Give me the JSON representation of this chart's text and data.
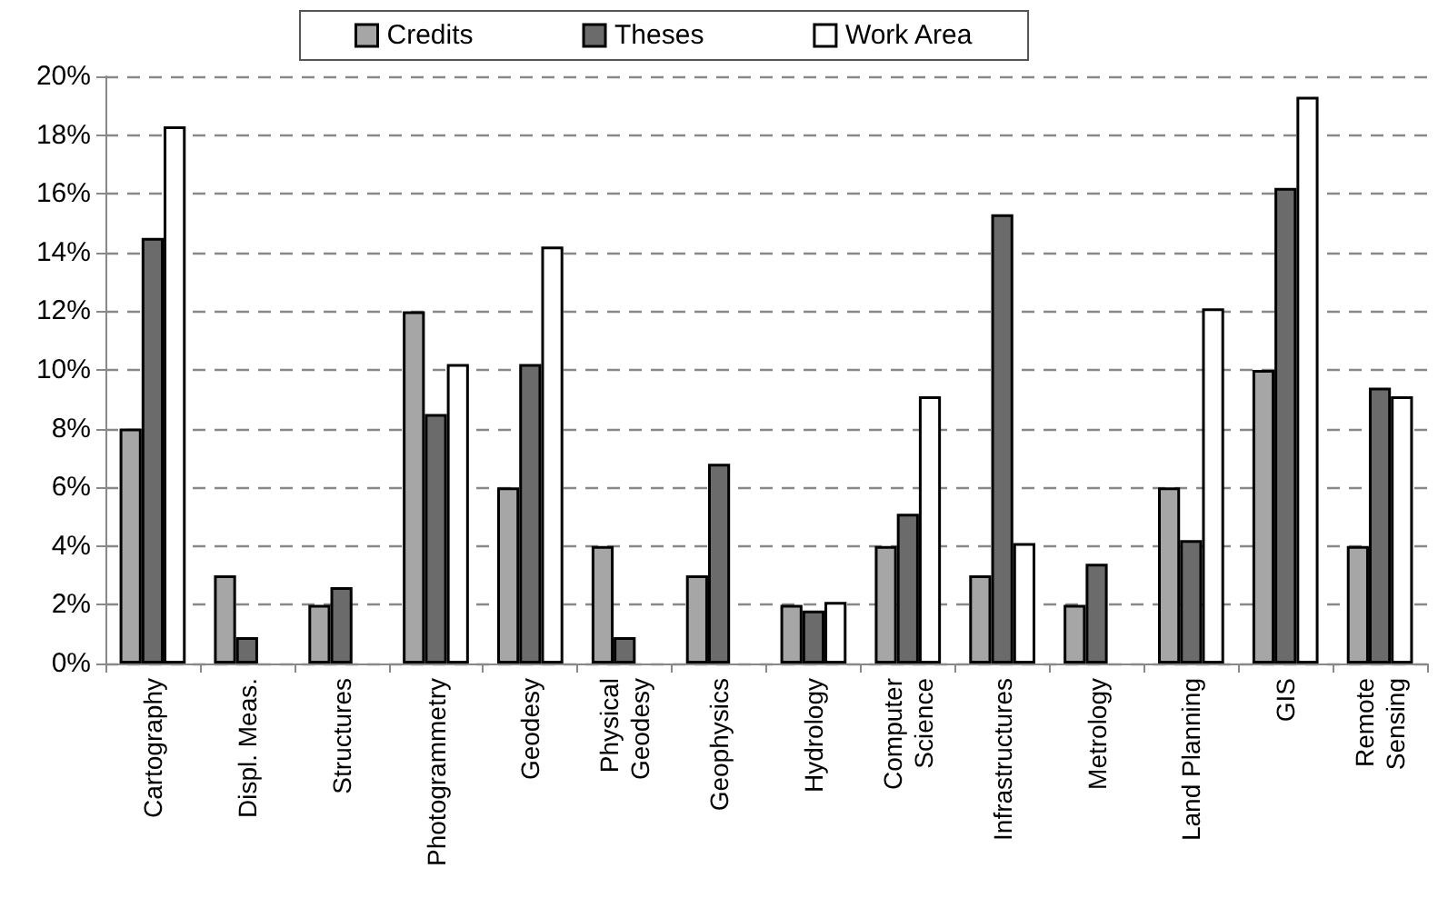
{
  "chart_data": {
    "type": "bar",
    "categories": [
      "Cartography",
      "Displ. Meas.",
      "Structures",
      "Photogrammetry",
      "Geodesy",
      "Physical\nGeodesy",
      "Geophysics",
      "Hydrology",
      "Computer\nScience",
      "Infrastructures",
      "Metrology",
      "Land Planning",
      "GIS",
      "Remote\nSensing"
    ],
    "series": [
      {
        "name": "Credits",
        "color": "#a6a6a6",
        "values": [
          8,
          3,
          2,
          12,
          6,
          4,
          3,
          2,
          4,
          3,
          2,
          6,
          10,
          4
        ]
      },
      {
        "name": "Theses",
        "color": "#6b6b6b",
        "values": [
          14.5,
          0.9,
          2.6,
          8.5,
          10.2,
          0.9,
          6.8,
          1.8,
          5.1,
          15.3,
          3.4,
          4.2,
          16.2,
          9.4
        ]
      },
      {
        "name": "Work Area",
        "color": "#ffffff",
        "values": [
          18.3,
          null,
          null,
          10.2,
          14.2,
          null,
          null,
          2.1,
          9.1,
          4.1,
          null,
          12.1,
          19.3,
          9.1
        ]
      }
    ],
    "ylim": [
      0,
      20
    ],
    "yticks": [
      {
        "value": 0,
        "label": "0%"
      },
      {
        "value": 2,
        "label": "2%"
      },
      {
        "value": 4,
        "label": "4%"
      },
      {
        "value": 6,
        "label": "6%"
      },
      {
        "value": 8,
        "label": "8%"
      },
      {
        "value": 10,
        "label": "10%"
      },
      {
        "value": 12,
        "label": "12%"
      },
      {
        "value": 14,
        "label": "14%"
      },
      {
        "value": 16,
        "label": "16%"
      },
      {
        "value": 18,
        "label": "18%"
      },
      {
        "value": 20,
        "label": "20%"
      }
    ],
    "grid": "y",
    "legend": "top"
  }
}
